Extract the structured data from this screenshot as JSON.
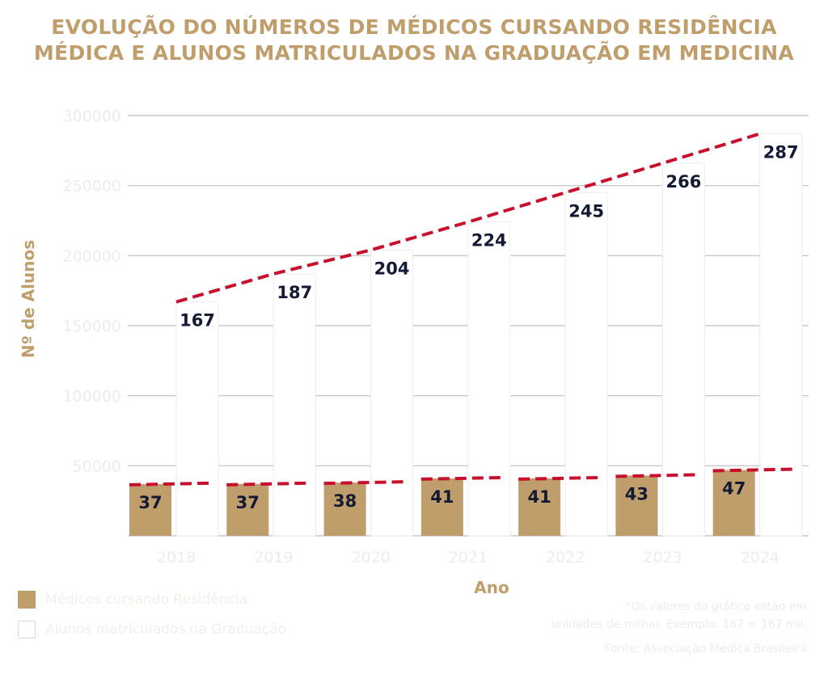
{
  "title_lines": [
    "EVOLUÇÃO DO NÚMEROS DE MÉDICOS CURSANDO RESIDÊNCIA",
    "MÉDICA E ALUNOS MATRICULADOS NA GRADUAÇÃO EM MEDICINA"
  ],
  "colors": {
    "accent": "#bf9e6b",
    "trend": "#c8102e",
    "value_text": "#141a33",
    "grid": "#bdbdbd",
    "faint_text": "#ececec"
  },
  "footnote": {
    "line1": "*Os valores do gráfico estão em",
    "line2": "unidades de milhar. Exemplo: 167 = 167 mil.",
    "source": "Fonte: Associação Médica Brasileira"
  },
  "chart_data": {
    "type": "bar",
    "xlabel": "Ano",
    "ylabel": "Nº de Alunos",
    "ylim": [
      0,
      300000
    ],
    "yticks": [
      "300000",
      "250000",
      "200000",
      "150000",
      "100000",
      "50000"
    ],
    "categories": [
      "2018",
      "2019",
      "2020",
      "2021",
      "2022",
      "2023",
      "2024"
    ],
    "series": [
      {
        "name": "Médicos cursando Residência",
        "values": [
          37,
          37,
          38,
          41,
          41,
          43,
          47
        ]
      },
      {
        "name": "Alunos matriculados na Graduação",
        "values": [
          167,
          187,
          204,
          224,
          245,
          266,
          287
        ]
      }
    ],
    "unit_note": "values in thousands",
    "trend_lines": true,
    "grid": true,
    "legend": "bottom-left"
  }
}
